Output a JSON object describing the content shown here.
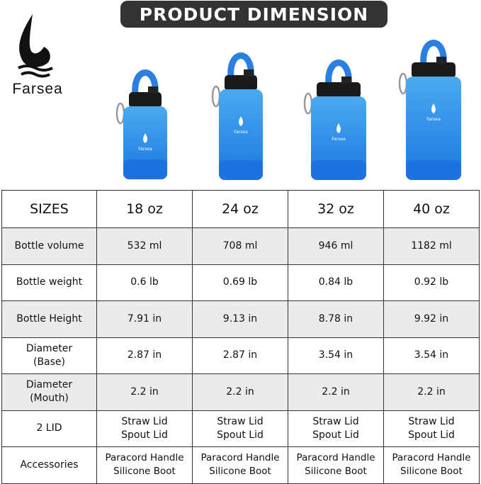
{
  "brand": {
    "name": "Farsea"
  },
  "banner": {
    "title": "PRODUCT DIMENSION"
  },
  "colors": {
    "banner_bg": "#333333",
    "bottle_top": "#3aa0e8",
    "bottle_bottom": "#1e7fe0",
    "row_gray": "#ebebeb"
  },
  "bottles": [
    {
      "size": "18 oz",
      "print": "Farsea"
    },
    {
      "size": "24 oz",
      "print": "Farsea"
    },
    {
      "size": "32 oz",
      "print": "Farsea"
    },
    {
      "size": "40 oz",
      "print": "Farsea"
    }
  ],
  "table": {
    "header": [
      "SIZES",
      "18 oz",
      "24 oz",
      "32 oz",
      "40 oz"
    ],
    "rows": [
      {
        "label": [
          "Bottle volume"
        ],
        "values": [
          [
            "532 ml"
          ],
          [
            "708 ml"
          ],
          [
            "946 ml"
          ],
          [
            "1182 ml"
          ]
        ]
      },
      {
        "label": [
          "Bottle weight"
        ],
        "values": [
          [
            "0.6 lb"
          ],
          [
            "0.69 lb"
          ],
          [
            "0.84 lb"
          ],
          [
            "0.92 lb"
          ]
        ]
      },
      {
        "label": [
          "Bottle Height"
        ],
        "values": [
          [
            "7.91 in"
          ],
          [
            "9.13 in"
          ],
          [
            "8.78 in"
          ],
          [
            "9.92 in"
          ]
        ]
      },
      {
        "label": [
          "Diameter",
          "(Base)"
        ],
        "values": [
          [
            "2.87 in"
          ],
          [
            "2.87 in"
          ],
          [
            "3.54 in"
          ],
          [
            "3.54 in"
          ]
        ]
      },
      {
        "label": [
          "Diameter",
          "(Mouth)"
        ],
        "values": [
          [
            "2.2 in"
          ],
          [
            "2.2 in"
          ],
          [
            "2.2 in"
          ],
          [
            "2.2 in"
          ]
        ]
      },
      {
        "label": [
          "2 LID"
        ],
        "values": [
          [
            "Straw Lid",
            "Spout Lid"
          ],
          [
            "Straw Lid",
            "Spout Lid"
          ],
          [
            "Straw Lid",
            "Spout Lid"
          ],
          [
            "Straw Lid",
            "Spout Lid"
          ]
        ]
      },
      {
        "label": [
          "Accessories"
        ],
        "values": [
          [
            "Paracord Handle",
            "Silicone Boot"
          ],
          [
            "Paracord Handle",
            "Silicone Boot"
          ],
          [
            "Paracord Handle",
            "Silicone Boot"
          ],
          [
            "Paracord Handle",
            "Silicone Boot"
          ]
        ]
      }
    ]
  }
}
